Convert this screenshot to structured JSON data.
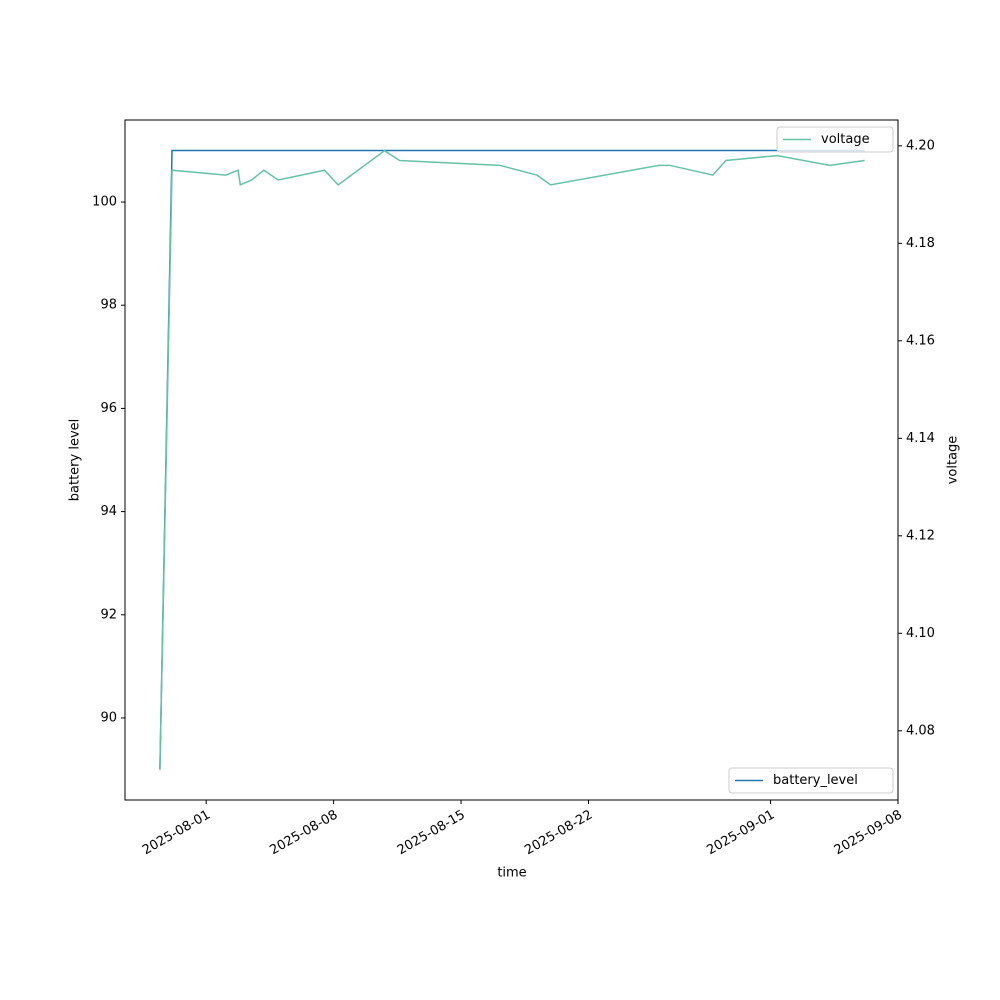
{
  "chart_data": {
    "type": "line",
    "x_label": "time",
    "y_label": "battery level",
    "y2_label": "voltage",
    "x": [
      "2025-07-29T11:00",
      "2025-07-30T03:00",
      "2025-08-02T02:00",
      "2025-08-02T18:00",
      "2025-08-02T21:00",
      "2025-08-03T12:00",
      "2025-08-04T04:00",
      "2025-08-04T23:00",
      "2025-08-07T12:00",
      "2025-08-08T06:00",
      "2025-08-10T19:00",
      "2025-08-11T15:00",
      "2025-08-17T03:00",
      "2025-08-19T04:00",
      "2025-08-19T22:00",
      "2025-08-25T21:00",
      "2025-08-26T11:00",
      "2025-08-28T20:00",
      "2025-08-29T13:00",
      "2025-09-01T09:00",
      "2025-09-04T06:00",
      "2025-09-06T04:00"
    ],
    "series": [
      {
        "name": "battery_level",
        "color": "#1f77b4",
        "axis": "y",
        "legend": "lower right",
        "values": [
          89,
          101,
          101,
          101,
          101,
          101,
          101,
          101,
          101,
          101,
          101,
          101,
          101,
          101,
          101,
          101,
          101,
          101,
          101,
          101,
          101,
          101
        ]
      },
      {
        "name": "voltage",
        "color": "#66c2a5",
        "axis": "y2",
        "legend": "upper right",
        "values": [
          4.072,
          4.195,
          4.194,
          4.195,
          4.192,
          4.193,
          4.195,
          4.193,
          4.195,
          4.192,
          4.199,
          4.197,
          4.196,
          4.194,
          4.192,
          4.196,
          4.196,
          4.194,
          4.197,
          4.198,
          4.196,
          4.197
        ]
      }
    ],
    "xlim": [
      "2025-07-27T13:00",
      "2025-09-08"
    ],
    "xticks": [
      "2025-08-01",
      "2025-08-08",
      "2025-08-15",
      "2025-08-22",
      "2025-09-01",
      "2025-09-08"
    ],
    "ylim": [
      88.41,
      101.59
    ],
    "yticks": [
      90,
      92,
      94,
      96,
      98,
      100
    ],
    "y2lim": [
      4.0658,
      4.2053
    ],
    "y2ticks": [
      4.08,
      {
        "value": 4.1,
        "label": "4.10"
      },
      4.12,
      4.14,
      4.16,
      4.18,
      {
        "value": 4.2,
        "label": "4.20"
      }
    ]
  }
}
